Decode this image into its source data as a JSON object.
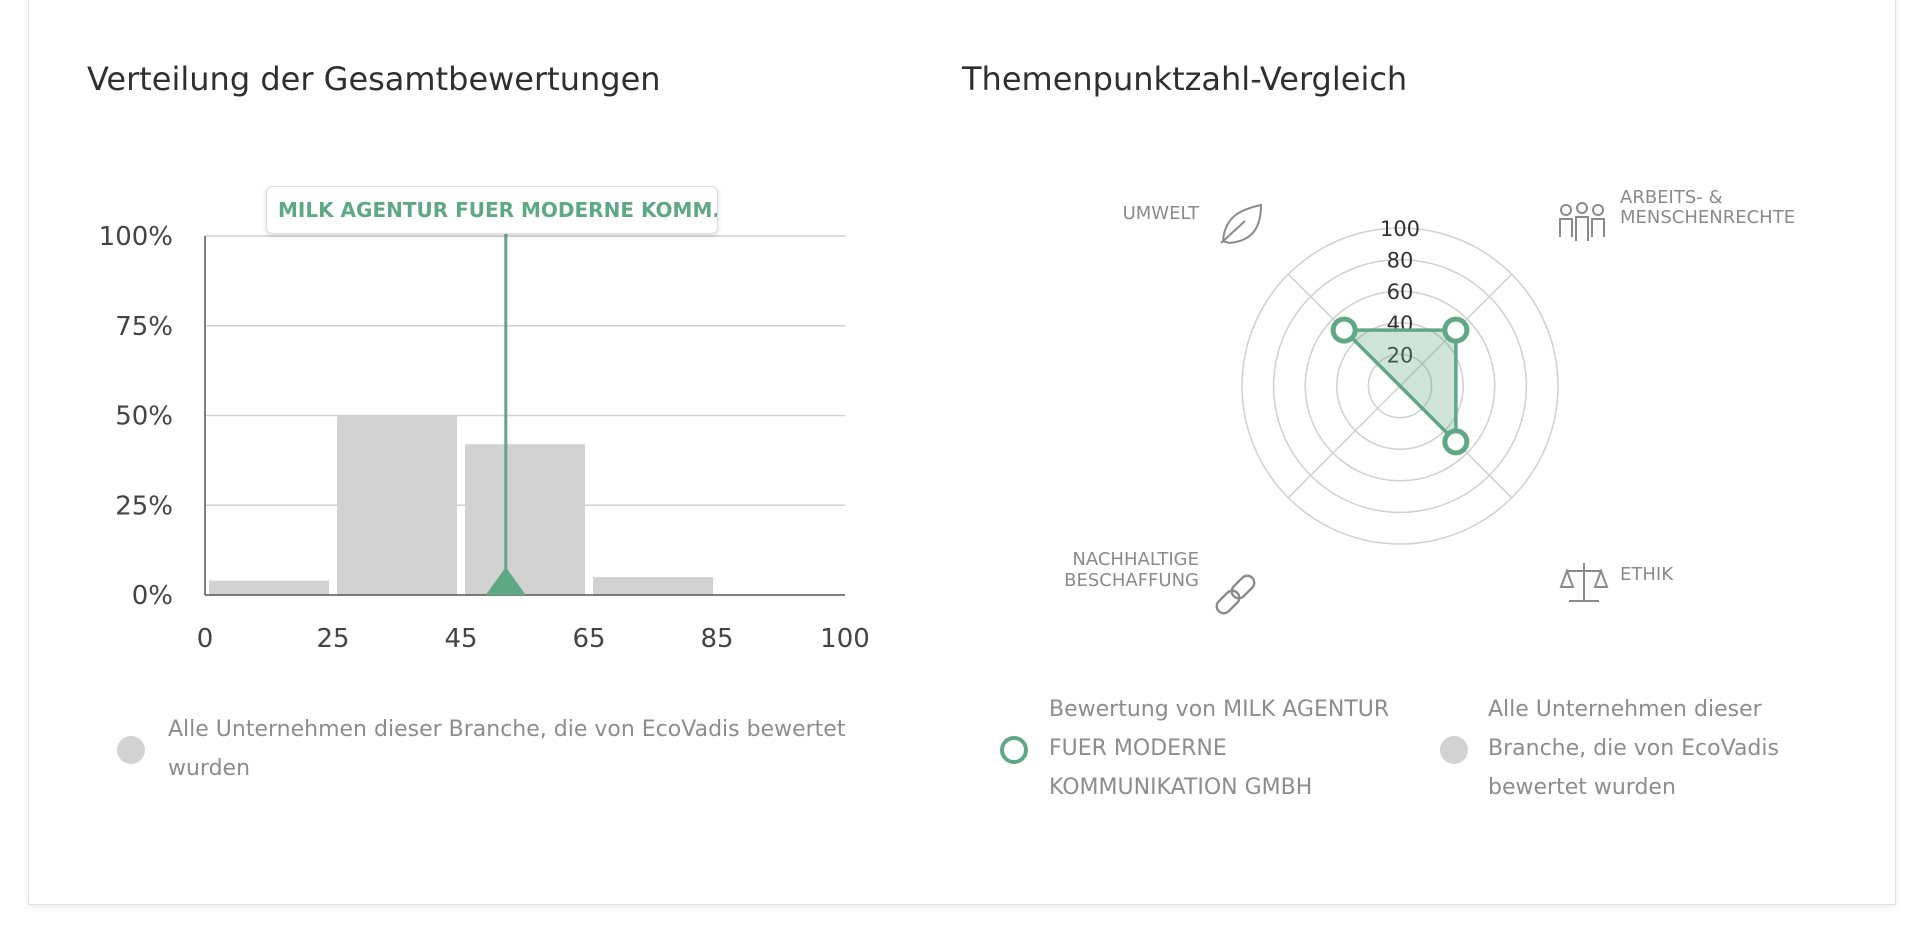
{
  "colors": {
    "accent": "#5fa886",
    "bar": "#d2d2d2",
    "grid": "#cfcfcf",
    "muted_text": "#8c8c8c"
  },
  "distribution": {
    "title": "Verteilung der Gesamtbewertungen",
    "tooltip": "MILK AGENTUR FUER MODERNE KOMM...",
    "legend_label": "Alle Unternehmen dieser Branche, die von EcoVadis bewertet wurden"
  },
  "radar": {
    "title": "Themenpunktzahl-Vergleich",
    "legend": {
      "company_label": "Bewertung von MILK AGENTUR FUER MODERNE KOMMUNIKATION GMBH",
      "industry_label": "Alle Unternehmen dieser Branche, die von EcoVadis bewertet wurden"
    }
  },
  "chart_data": [
    {
      "type": "bar",
      "title": "Verteilung der Gesamtbewertungen",
      "x_ticks": [
        "0",
        "25",
        "45",
        "65",
        "85",
        "100"
      ],
      "y_ticks": [
        "0%",
        "25%",
        "50%",
        "75%",
        "100%"
      ],
      "ylim": [
        0,
        100
      ],
      "bins": [
        {
          "from": 0,
          "to": 25,
          "value": 4
        },
        {
          "from": 25,
          "to": 45,
          "value": 50
        },
        {
          "from": 45,
          "to": 65,
          "value": 42
        },
        {
          "from": 65,
          "to": 85,
          "value": 5
        },
        {
          "from": 85,
          "to": 100,
          "value": 0
        }
      ],
      "marker": {
        "label": "MILK AGENTUR FUER MODERNE KOMM...",
        "x": 52
      },
      "grid": true
    },
    {
      "type": "radar",
      "title": "Themenpunktzahl-Vergleich",
      "rings": [
        "20",
        "40",
        "60",
        "80",
        "100"
      ],
      "rlim": [
        0,
        100
      ],
      "axes": [
        {
          "label": "UMWELT",
          "icon": "leaf-icon"
        },
        {
          "label": "ARBEITS- & MENSCHENRECHTE",
          "icon": "people-icon"
        },
        {
          "label": "ETHIK",
          "icon": "scales-icon"
        },
        {
          "label": "NACHHALTIGE BESCHAFFUNG",
          "icon": "chain-link-icon"
        }
      ],
      "series": [
        {
          "name": "Bewertung von MILK AGENTUR FUER MODERNE KOMMUNIKATION GMBH",
          "values": [
            50,
            50,
            50,
            0
          ]
        }
      ],
      "legend": [
        "Bewertung von MILK AGENTUR FUER MODERNE KOMMUNIKATION GMBH",
        "Alle Unternehmen dieser Branche, die von EcoVadis bewertet wurden"
      ]
    }
  ]
}
